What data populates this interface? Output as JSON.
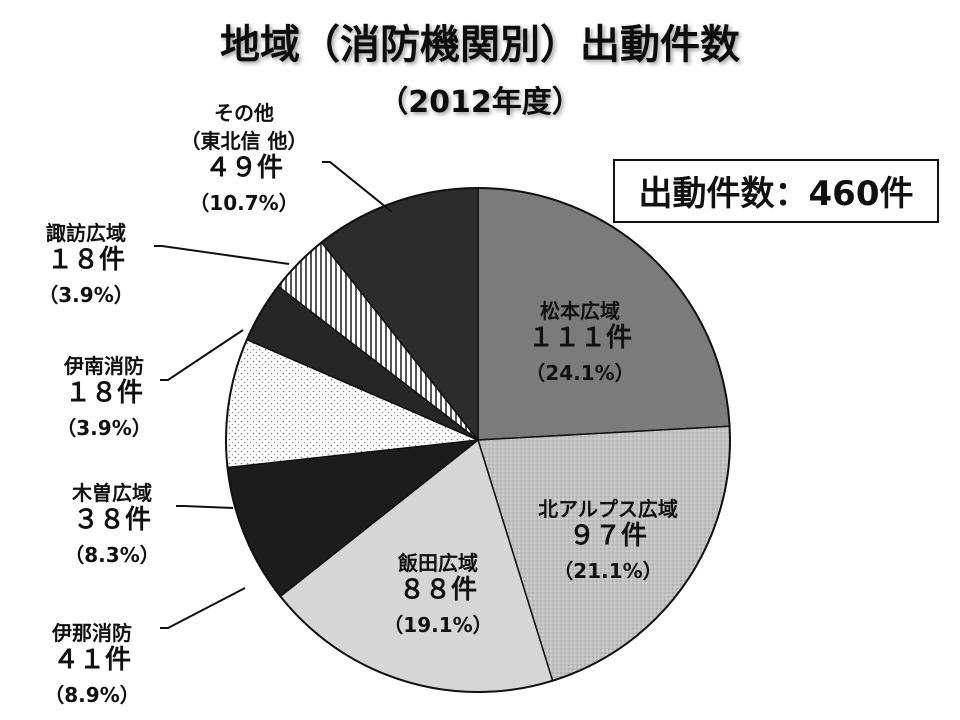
{
  "chart_data": {
    "type": "pie",
    "title": "地域（消防機関別）出動件数",
    "subtitle": "（2012年度）",
    "total_label": "出動件数：460件",
    "unit": "件",
    "slices": [
      {
        "name": "松本広域",
        "value": 111,
        "count_label": "１１１件",
        "percent_label": "（24.1%）",
        "fill": "#7a7a7a"
      },
      {
        "name": "北アルプス広域",
        "value": 97,
        "count_label": "９７件",
        "percent_label": "（21.1%）",
        "fill": "#bcbcbc"
      },
      {
        "name": "飯田広域",
        "value": 88,
        "count_label": "８８件",
        "percent_label": "（19.1%）",
        "fill": "#d4d4d4"
      },
      {
        "name": "伊那消防",
        "value": 41,
        "count_label": "４１件",
        "percent_label": "（8.9%）",
        "fill": "#eeeeee"
      },
      {
        "name": "木曽広域",
        "value": 38,
        "count_label": "３８件",
        "percent_label": "（8.3%）",
        "fill": "#222222"
      },
      {
        "name": "伊南消防",
        "value": 18,
        "count_label": "１８件",
        "percent_label": "（3.9%）",
        "fill": "#ffffff"
      },
      {
        "name": "諏訪広域",
        "value": 18,
        "count_label": "１８件",
        "percent_label": "（3.9%）",
        "fill": "#333333"
      },
      {
        "name": "その他",
        "name_sub": "（東北信 他）",
        "value": 49,
        "count_label": "４９件",
        "percent_label": "（10.7%）",
        "fill": "#e6e6e6"
      },
      {
        "name": "",
        "value": 0,
        "count_label": "",
        "percent_label": "",
        "fill": "#333333"
      }
    ]
  }
}
